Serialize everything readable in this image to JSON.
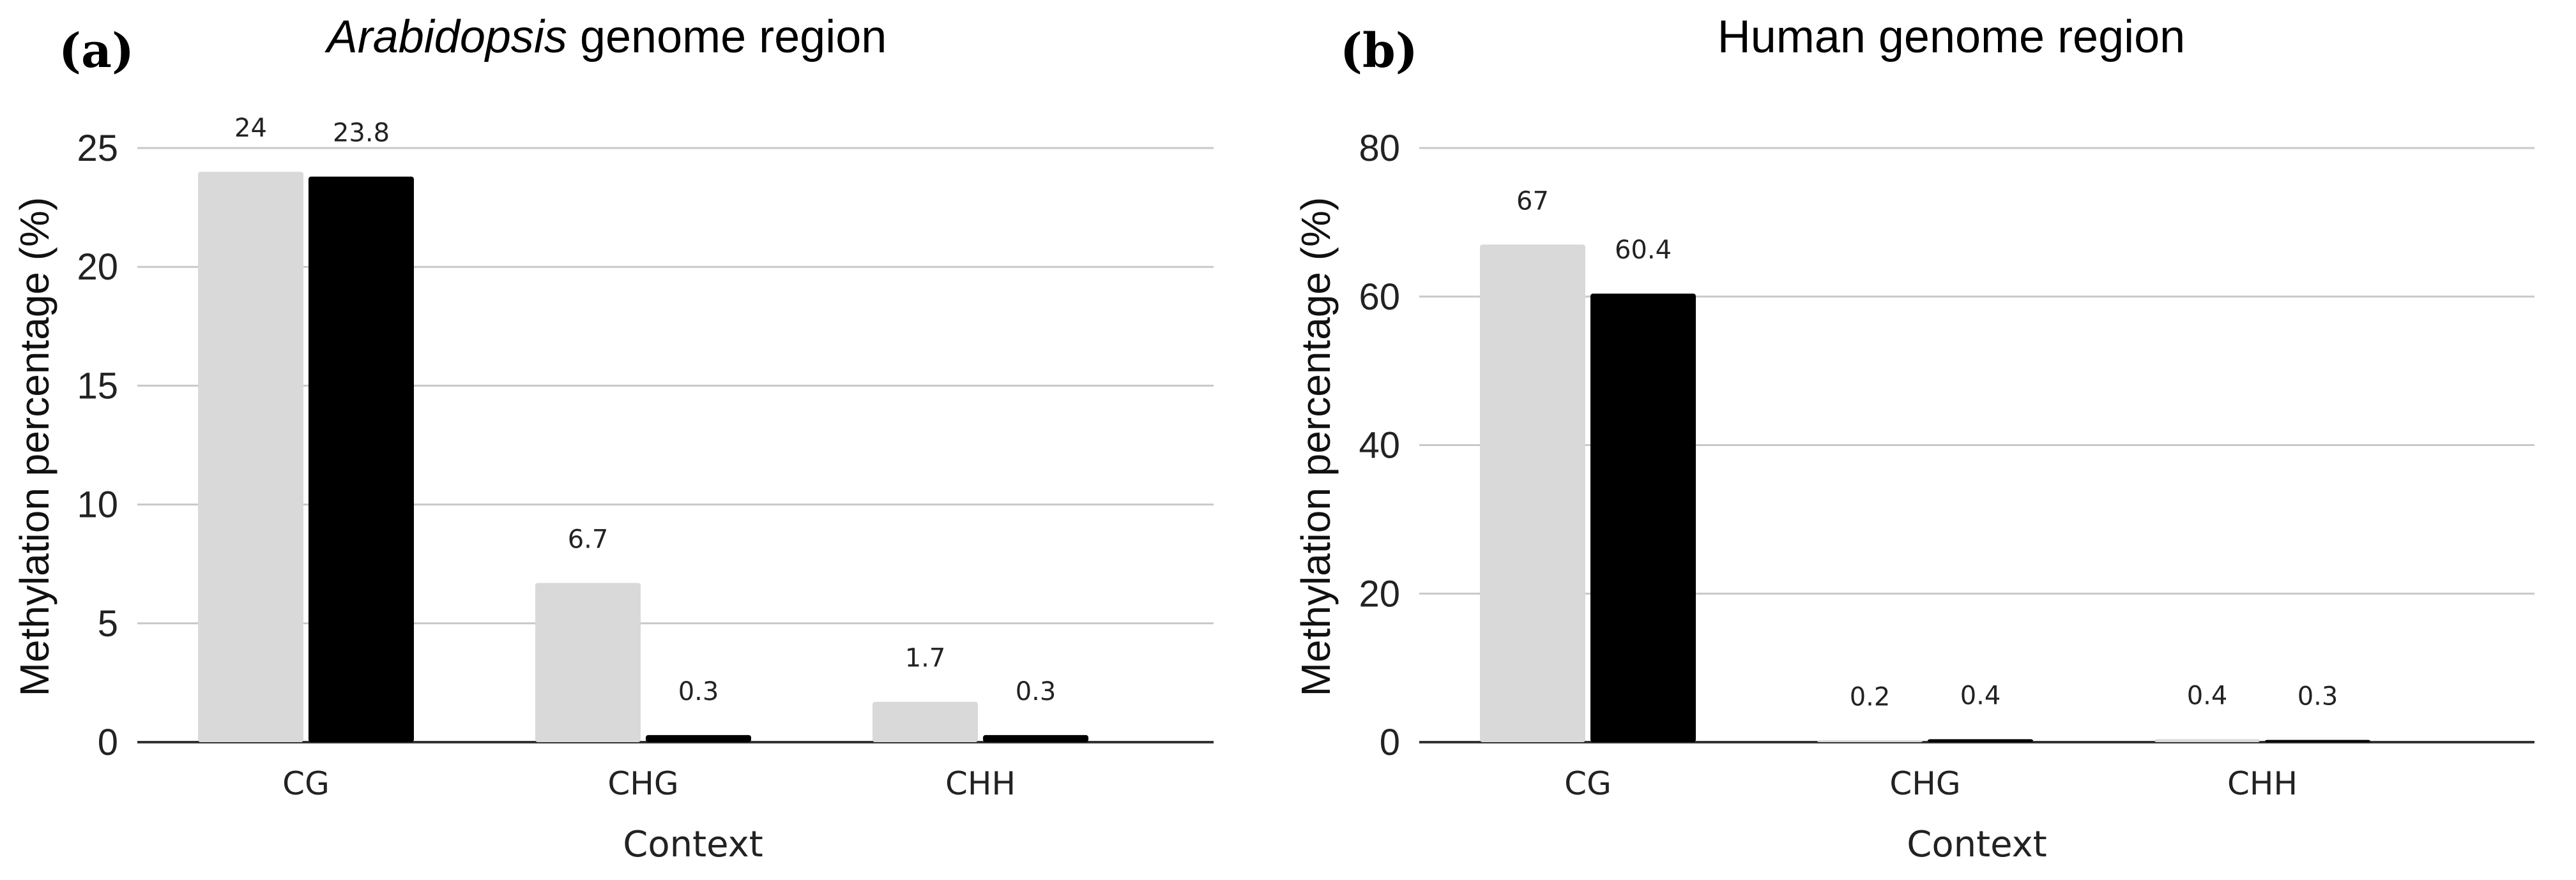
{
  "chart_data": [
    {
      "type": "bar",
      "panel_label": "(a)",
      "title_italic": "Arabidopsis",
      "title_rest": " genome region",
      "xlabel": "Context",
      "ylabel": "Methylation percentage (%)",
      "categories": [
        "CG",
        "CHG",
        "CHH"
      ],
      "ylim": [
        0,
        25
      ],
      "yticks": [
        0,
        5,
        10,
        15,
        20,
        25
      ],
      "grid": true,
      "series": [
        {
          "name": "series-1",
          "color": "#d9d9d9",
          "values": [
            24,
            6.7,
            1.7
          ],
          "labels": [
            "24",
            "6.7",
            "1.7"
          ]
        },
        {
          "name": "series-2",
          "color": "#000000",
          "values": [
            23.8,
            0.3,
            0.3
          ],
          "labels": [
            "23.8",
            "0.3",
            "0.3"
          ]
        }
      ]
    },
    {
      "type": "bar",
      "panel_label": "(b)",
      "title_italic": "",
      "title_rest": "Human genome region",
      "xlabel": "Context",
      "ylabel": "Methylation percentage (%)",
      "categories": [
        "CG",
        "CHG",
        "CHH"
      ],
      "ylim": [
        0,
        80
      ],
      "yticks": [
        0,
        20,
        40,
        60,
        80
      ],
      "grid": true,
      "series": [
        {
          "name": "series-1",
          "color": "#d9d9d9",
          "values": [
            67,
            0.2,
            0.4
          ],
          "labels": [
            "67",
            "0.2",
            "0.4"
          ]
        },
        {
          "name": "series-2",
          "color": "#000000",
          "values": [
            60.4,
            0.4,
            0.3
          ],
          "labels": [
            "60.4",
            "0.4",
            "0.3"
          ]
        }
      ]
    }
  ]
}
